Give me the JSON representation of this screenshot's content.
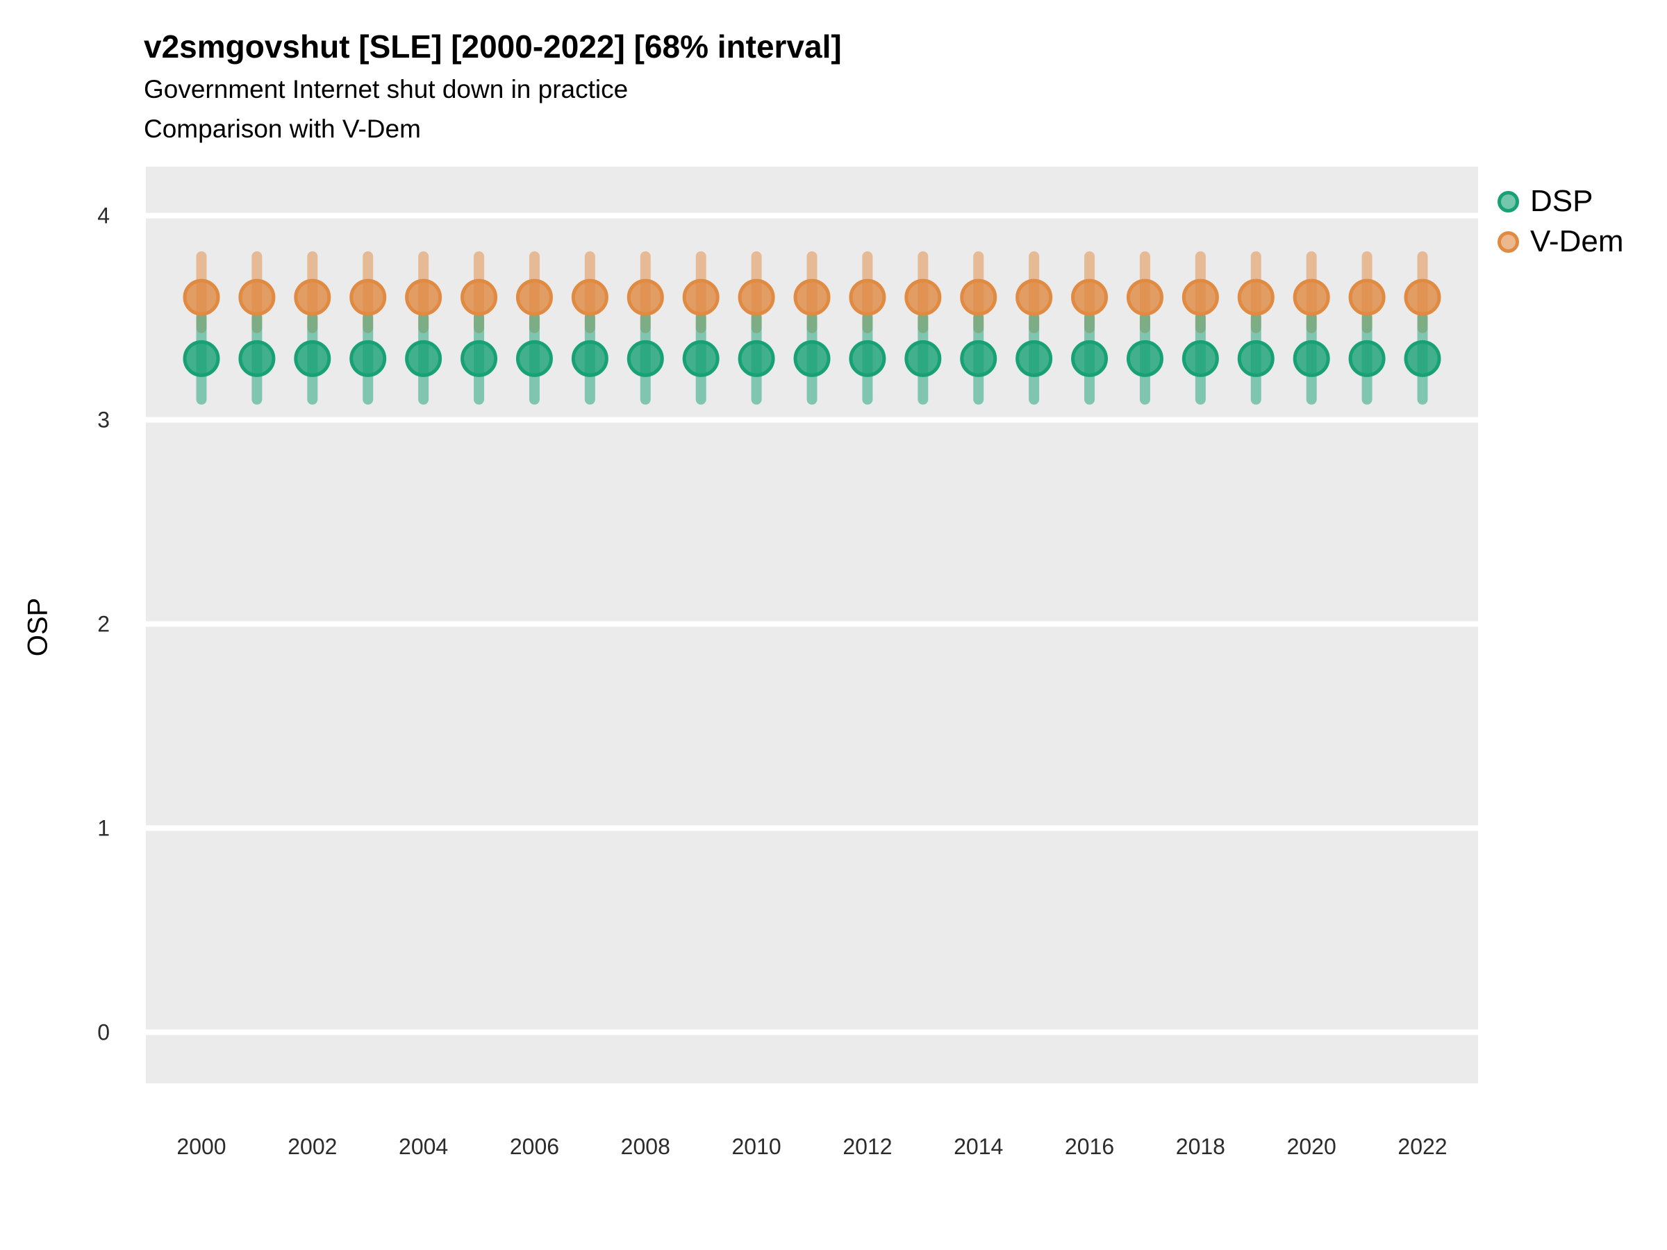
{
  "header": {
    "title": "v2smgovshut [SLE] [2000-2022] [68% interval]",
    "subtitle1": "Government Internet shut down in practice",
    "subtitle2": "Comparison with V-Dem"
  },
  "axes": {
    "y_label": "OSP",
    "y_ticks": [
      0,
      1,
      2,
      3,
      4
    ],
    "x_ticks": [
      2000,
      2002,
      2004,
      2006,
      2008,
      2010,
      2012,
      2014,
      2016,
      2018,
      2020,
      2022
    ]
  },
  "legend": {
    "items": [
      {
        "label": "DSP",
        "color": "#18A174"
      },
      {
        "label": "V-Dem",
        "color": "#E08A42"
      }
    ]
  },
  "chart_data": {
    "type": "pointrange",
    "title": "v2smgovshut [SLE] [2000-2022] [68% interval]",
    "subtitle": "Government Internet shut down in practice — Comparison with V-Dem",
    "interval": "68%",
    "country": "SLE",
    "xlabel": "",
    "ylabel": "OSP",
    "ylim": [
      -0.25,
      4.24
    ],
    "grid": "white major gridlines on gray panel",
    "legend_position": "right",
    "panel_background": "#EBEBEB",
    "gridline_color": "#FFFFFF",
    "x": [
      2000,
      2001,
      2002,
      2003,
      2004,
      2005,
      2006,
      2007,
      2008,
      2009,
      2010,
      2011,
      2012,
      2013,
      2014,
      2015,
      2016,
      2017,
      2018,
      2019,
      2020,
      2021,
      2022
    ],
    "series": [
      {
        "name": "DSP",
        "color": "#18A174",
        "y": [
          3.3,
          3.3,
          3.3,
          3.3,
          3.3,
          3.3,
          3.3,
          3.3,
          3.3,
          3.3,
          3.3,
          3.3,
          3.3,
          3.3,
          3.3,
          3.3,
          3.3,
          3.3,
          3.3,
          3.3,
          3.3,
          3.3,
          3.3
        ],
        "ymin": [
          3.1,
          3.1,
          3.1,
          3.1,
          3.1,
          3.1,
          3.1,
          3.1,
          3.1,
          3.1,
          3.1,
          3.1,
          3.1,
          3.1,
          3.1,
          3.1,
          3.1,
          3.1,
          3.1,
          3.1,
          3.1,
          3.1,
          3.1
        ],
        "ymax": [
          3.5,
          3.5,
          3.5,
          3.5,
          3.5,
          3.5,
          3.5,
          3.5,
          3.5,
          3.5,
          3.5,
          3.5,
          3.5,
          3.5,
          3.5,
          3.5,
          3.5,
          3.5,
          3.5,
          3.5,
          3.5,
          3.5,
          3.5
        ]
      },
      {
        "name": "V-Dem",
        "color": "#E08A42",
        "y": [
          3.6,
          3.6,
          3.6,
          3.6,
          3.6,
          3.6,
          3.6,
          3.6,
          3.6,
          3.6,
          3.6,
          3.6,
          3.6,
          3.6,
          3.6,
          3.6,
          3.6,
          3.6,
          3.6,
          3.6,
          3.6,
          3.6,
          3.6
        ],
        "ymin": [
          3.45,
          3.45,
          3.45,
          3.45,
          3.45,
          3.45,
          3.45,
          3.45,
          3.45,
          3.45,
          3.45,
          3.45,
          3.45,
          3.45,
          3.45,
          3.45,
          3.45,
          3.45,
          3.45,
          3.45,
          3.45,
          3.45,
          3.45
        ],
        "ymax": [
          3.8,
          3.8,
          3.8,
          3.8,
          3.8,
          3.8,
          3.8,
          3.8,
          3.8,
          3.8,
          3.8,
          3.8,
          3.8,
          3.8,
          3.8,
          3.8,
          3.8,
          3.8,
          3.8,
          3.8,
          3.8,
          3.8,
          3.8
        ]
      }
    ]
  }
}
